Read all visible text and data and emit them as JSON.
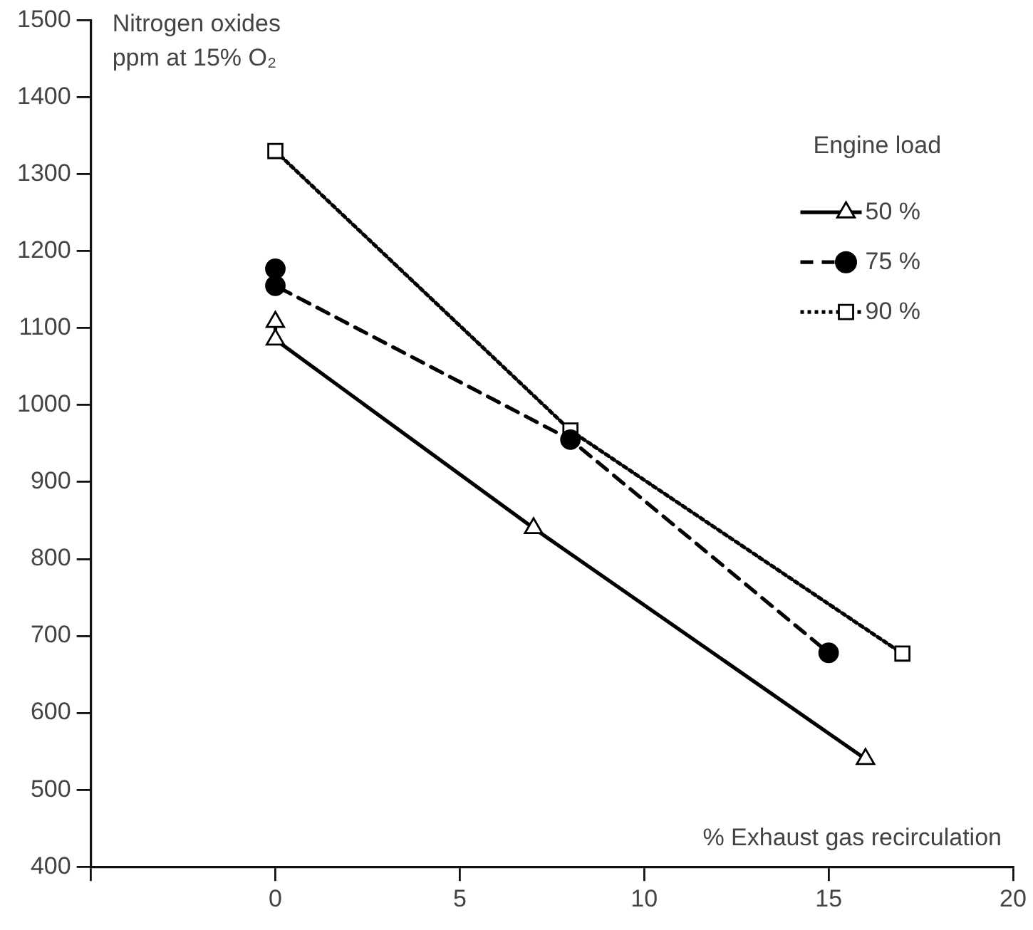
{
  "chart_data": {
    "type": "line",
    "xlabel": "% Exhaust gas recirculation",
    "ylabel": "Nitrogen oxides\nppm at 15% O₂",
    "legend_title": "Engine load",
    "legend": "top right",
    "grid": false,
    "xlim": [
      -5,
      20
    ],
    "xticks": [
      {
        "value": -5,
        "label": null
      },
      0,
      5,
      10,
      15,
      20
    ],
    "ylim": [
      400,
      1500
    ],
    "yticks": [
      400,
      500,
      600,
      700,
      800,
      900,
      1000,
      1100,
      1200,
      1300,
      1400,
      1500
    ],
    "series": [
      {
        "name": "50 %",
        "color": "#000000",
        "marker": "triangle",
        "line_style": "solid",
        "x": [
          0,
          0,
          7,
          16
        ],
        "values": [
          1108,
          1085,
          840,
          540
        ]
      },
      {
        "name": "75 %",
        "color": "#000000",
        "marker": "circle",
        "line_style": "dashed",
        "x": [
          0,
          0,
          8,
          15
        ],
        "values": [
          1177,
          1155,
          955,
          678
        ]
      },
      {
        "name": "90 %",
        "color": "#000000",
        "marker": "square",
        "line_style": "dotted",
        "x": [
          0,
          8,
          17
        ],
        "values": [
          1330,
          967,
          677
        ]
      }
    ]
  }
}
